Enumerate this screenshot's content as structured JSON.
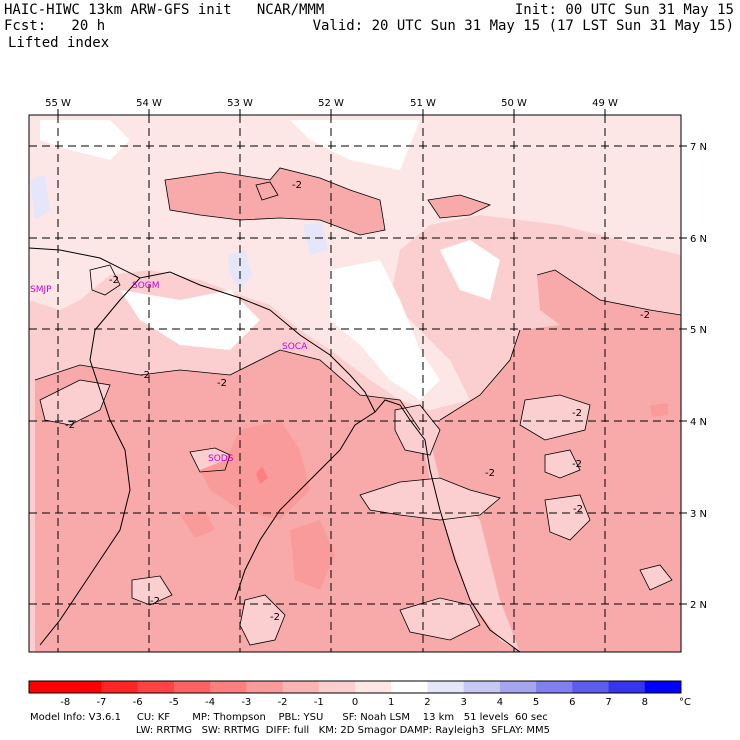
{
  "header": {
    "left_line1": "HAIC-HIWC 13km ARW-GFS init   NCAR/MMM",
    "left_line2": "Fcst:   20 h",
    "variable": "Lifted index",
    "right_line1": "Init: 00 UTC Sun 31 May 15",
    "right_line2": "Valid: 20 UTC Sun 31 May 15 (17 LST Sun 31 May 15)"
  },
  "map": {
    "lon_labels": [
      "55 W",
      "54 W",
      "53 W",
      "52 W",
      "51 W",
      "50 W",
      "49 W"
    ],
    "lat_labels": [
      "7 N",
      "6 N",
      "5 N",
      "4 N",
      "3 N",
      "2 N"
    ],
    "stations": [
      "SMJP",
      "SOGM",
      "SOCA",
      "SODS"
    ],
    "contour_label": "-2",
    "colors": {
      "lightest_pink": "#fde6e6",
      "light_pink": "#fbcfcf",
      "mid_pink": "#f8aaaa",
      "lavender": "#e6e6fa",
      "station": "#cc00cc"
    }
  },
  "colorbar": {
    "ticks": [
      "-8",
      "-7",
      "-6",
      "-5",
      "-4",
      "-3",
      "-2",
      "-1",
      "0",
      "1",
      "2",
      "3",
      "4",
      "5",
      "6",
      "7",
      "8"
    ],
    "unit": "°C",
    "colors": [
      "#ff0000",
      "#ff2525",
      "#ff4343",
      "#ff6262",
      "#fd8080",
      "#fa9b9b",
      "#fab4b4",
      "#fbcfcf",
      "#fde6e6",
      "#ffffff",
      "#e6e6fa",
      "#c8c8f5",
      "#a6a6f0",
      "#8080f0",
      "#5c5ced",
      "#3535ee",
      "#0000ff"
    ]
  },
  "footer": {
    "line1": "Model Info: V3.6.1     CU: KF       MP: Thompson    PBL: YSU      SF: Noah LSM    13 km   51 levels  60 sec",
    "line2": "     LW: RRTMG   SW: RRTMG  DIFF: full   KM: 2D Smagor DAMP: Rayleigh3  SFLAY: MM5"
  }
}
